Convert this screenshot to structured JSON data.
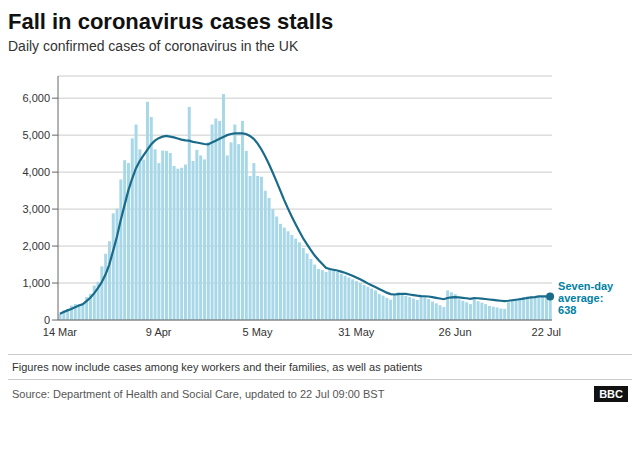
{
  "chart_data": {
    "type": "bar",
    "title": "Fall in coronavirus cases stalls",
    "subtitle": "Daily confirmed cases of coronavirus in the UK",
    "categories": [
      "14 Mar",
      null,
      null,
      null,
      null,
      null,
      null,
      null,
      null,
      null,
      null,
      null,
      null,
      null,
      null,
      null,
      null,
      null,
      null,
      null,
      null,
      null,
      null,
      null,
      null,
      null,
      "9 Apr",
      null,
      null,
      null,
      null,
      null,
      null,
      null,
      null,
      null,
      null,
      null,
      null,
      null,
      null,
      null,
      null,
      null,
      null,
      null,
      null,
      null,
      null,
      null,
      null,
      null,
      "5 May",
      null,
      null,
      null,
      null,
      null,
      null,
      null,
      null,
      null,
      null,
      null,
      null,
      null,
      null,
      null,
      null,
      null,
      null,
      null,
      null,
      null,
      null,
      null,
      null,
      null,
      "31 May",
      null,
      null,
      null,
      null,
      null,
      null,
      null,
      null,
      null,
      null,
      null,
      null,
      null,
      null,
      null,
      null,
      null,
      null,
      null,
      null,
      null,
      null,
      null,
      null,
      null,
      "26 Jun",
      null,
      null,
      null,
      null,
      null,
      null,
      null,
      null,
      null,
      null,
      null,
      null,
      null,
      null,
      null,
      null,
      null,
      null,
      null,
      null,
      null,
      null,
      null,
      "22 Jul",
      null
    ],
    "series": [
      {
        "type": "bar",
        "color": "#a8d8e8",
        "values": [
          170,
          260,
          290,
          390,
          430,
          430,
          460,
          620,
          710,
          930,
          1035,
          1452,
          1793,
          2129,
          2885,
          3009,
          3802,
          4324,
          4244,
          4913,
          5288,
          4617,
          4342,
          5903,
          5492,
          4617,
          4244,
          4583,
          4575,
          4516,
          4166,
          4093,
          4118,
          4205,
          5765,
          4301,
          4603,
          4451,
          4344,
          4806,
          5288,
          5450,
          5386,
          6111,
          4451,
          4806,
          5288,
          4758,
          5386,
          4575,
          3896,
          4244,
          3896,
          3875,
          3499,
          3300,
          3000,
          2800,
          2600,
          2500,
          2400,
          2300,
          2200,
          2100,
          1950,
          1800,
          1650,
          1500,
          1380,
          1350,
          1300,
          1400,
          1350,
          1300,
          1250,
          1200,
          1150,
          1100,
          1050,
          1000,
          950,
          900,
          850,
          800,
          700,
          660,
          600,
          550,
          700,
          750,
          720,
          650,
          620,
          580,
          540,
          680,
          620,
          570,
          500,
          450,
          400,
          350,
          800,
          750,
          700,
          560,
          520,
          480,
          430,
          560,
          510,
          470,
          430,
          380,
          360,
          340,
          310,
          300,
          480,
          520,
          570,
          600,
          620,
          640,
          640,
          630,
          638,
          650,
          660,
          638
        ]
      },
      {
        "type": "line",
        "color": "#1a6b8a",
        "values": [
          170,
          215,
          260,
          300,
          348,
          390,
          425,
          510,
          600,
          720,
          860,
          1020,
          1230,
          1500,
          1870,
          2250,
          2700,
          3100,
          3500,
          3820,
          4100,
          4300,
          4450,
          4600,
          4750,
          4850,
          4920,
          4960,
          4980,
          4960,
          4940,
          4910,
          4880,
          4860,
          4850,
          4820,
          4800,
          4780,
          4760,
          4750,
          4800,
          4850,
          4900,
          4950,
          5000,
          5030,
          5050,
          5050,
          5050,
          5030,
          4980,
          4900,
          4780,
          4620,
          4430,
          4220,
          3990,
          3750,
          3500,
          3250,
          3020,
          2800,
          2600,
          2400,
          2210,
          2050,
          1900,
          1750,
          1630,
          1520,
          1410,
          1380,
          1360,
          1340,
          1310,
          1280,
          1240,
          1200,
          1150,
          1100,
          1050,
          990,
          940,
          890,
          840,
          790,
          740,
          700,
          690,
          700,
          710,
          705,
          690,
          675,
          658,
          648,
          643,
          635,
          618,
          600,
          582,
          562,
          595,
          610,
          620,
          612,
          600,
          588,
          574,
          592,
          588,
          580,
          568,
          554,
          542,
          530,
          520,
          510,
          520,
          534,
          548,
          562,
          578,
          595,
          610,
          618,
          638,
          638,
          638,
          638
        ]
      }
    ],
    "ylim": [
      0,
      6600
    ],
    "yticks": [
      0,
      {
        "value": 1000,
        "label": "1,000"
      },
      {
        "value": 2000,
        "label": "2,000"
      },
      {
        "value": 3000,
        "label": "3,000"
      },
      {
        "value": 4000,
        "label": "4,000"
      },
      {
        "value": 5000,
        "label": "5,000"
      },
      {
        "value": 6000,
        "label": "6,000"
      }
    ],
    "grid": true,
    "annotations": [
      {
        "text": "Seven-day\naverage:\n638",
        "color": "#007fa3"
      }
    ],
    "note": "Figures now include cases among key workers and their families, as well as patients",
    "source": "Source: Department of Health and Social Care, updated to 22 Jul 09:00 BST",
    "logo": "BBC"
  }
}
